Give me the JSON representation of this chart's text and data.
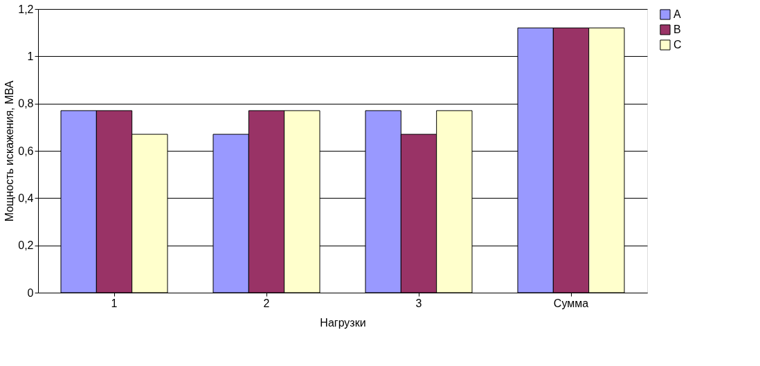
{
  "chart_data": {
    "type": "bar",
    "xlabel": "Нагрузки",
    "ylabel": "Мощность искажения, МВА",
    "categories": [
      "1",
      "2",
      "3",
      "Сумма"
    ],
    "series": [
      {
        "name": "A",
        "color": "#9999ff",
        "values": [
          0.77,
          0.67,
          0.77,
          1.12
        ]
      },
      {
        "name": "B",
        "color": "#993366",
        "values": [
          0.77,
          0.77,
          0.67,
          1.12
        ]
      },
      {
        "name": "C",
        "color": "#ffffcc",
        "values": [
          0.67,
          0.77,
          0.77,
          1.12
        ]
      }
    ],
    "ylim": [
      0,
      1.2
    ],
    "yticks": [
      0,
      {
        "value": 0.2,
        "label": "0,2"
      },
      {
        "value": 0.4,
        "label": "0,4"
      },
      {
        "value": 0.6,
        "label": "0,6"
      },
      {
        "value": 0.8,
        "label": "0,8"
      },
      1,
      {
        "value": 1.2,
        "label": "1,2"
      }
    ],
    "grid": "y",
    "legend": "right"
  }
}
